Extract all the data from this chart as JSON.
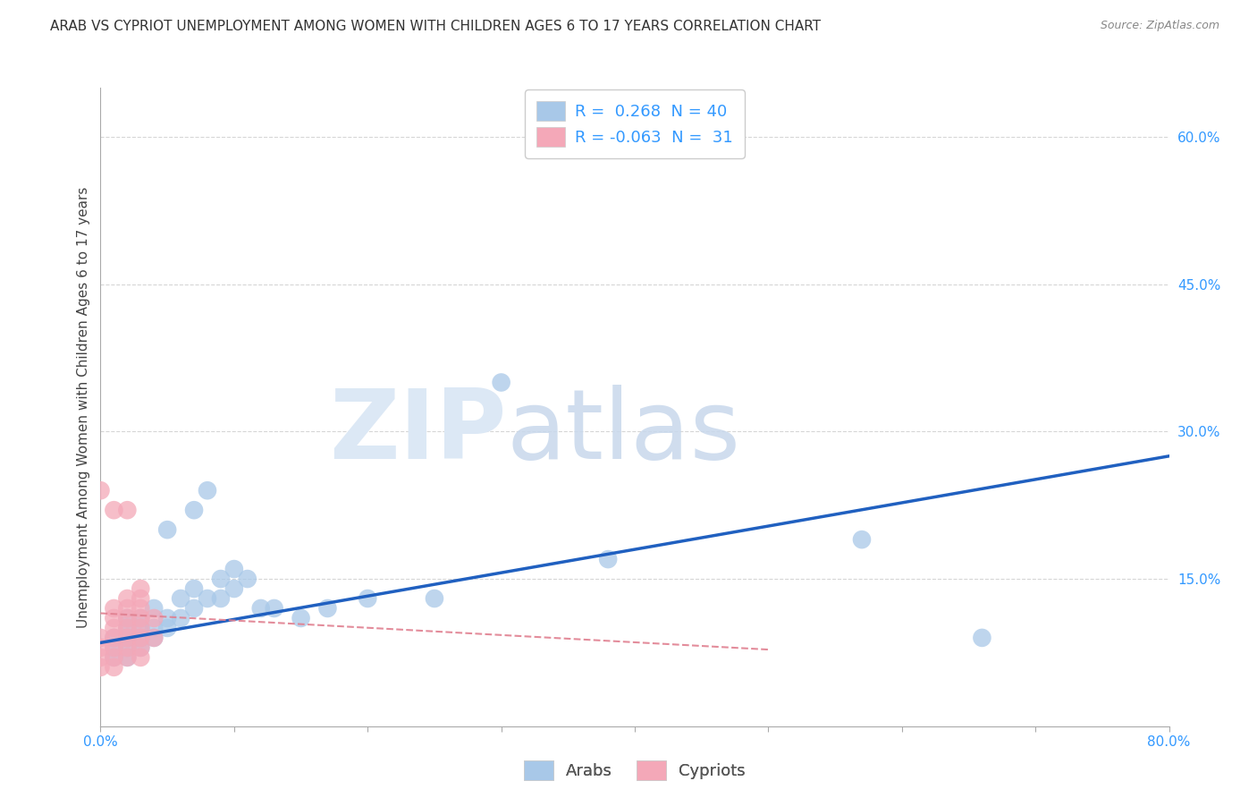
{
  "title": "ARAB VS CYPRIOT UNEMPLOYMENT AMONG WOMEN WITH CHILDREN AGES 6 TO 17 YEARS CORRELATION CHART",
  "source": "Source: ZipAtlas.com",
  "ylabel": "Unemployment Among Women with Children Ages 6 to 17 years",
  "xlim": [
    0.0,
    0.8
  ],
  "ylim": [
    0.0,
    0.65
  ],
  "xticks": [
    0.0,
    0.1,
    0.2,
    0.3,
    0.4,
    0.5,
    0.6,
    0.7,
    0.8
  ],
  "xticklabels": [
    "0.0%",
    "",
    "",
    "",
    "",
    "",
    "",
    "",
    "80.0%"
  ],
  "ytick_right_labels": [
    "60.0%",
    "45.0%",
    "30.0%",
    "15.0%",
    ""
  ],
  "ytick_right_values": [
    0.6,
    0.45,
    0.3,
    0.15,
    0.0
  ],
  "legend_arab_R": "0.268",
  "legend_arab_N": "40",
  "legend_cypriot_R": "-0.063",
  "legend_cypriot_N": "31",
  "arab_color": "#a8c8e8",
  "cypriot_color": "#f4a8b8",
  "arab_line_color": "#2060c0",
  "cypriot_line_color": "#e08090",
  "arab_x": [
    0.01,
    0.01,
    0.01,
    0.02,
    0.02,
    0.02,
    0.02,
    0.02,
    0.03,
    0.03,
    0.03,
    0.03,
    0.04,
    0.04,
    0.04,
    0.05,
    0.05,
    0.05,
    0.06,
    0.06,
    0.07,
    0.07,
    0.07,
    0.08,
    0.08,
    0.09,
    0.09,
    0.1,
    0.1,
    0.11,
    0.12,
    0.13,
    0.15,
    0.17,
    0.2,
    0.25,
    0.3,
    0.38,
    0.57,
    0.66
  ],
  "arab_y": [
    0.07,
    0.08,
    0.09,
    0.07,
    0.08,
    0.09,
    0.1,
    0.11,
    0.08,
    0.09,
    0.1,
    0.11,
    0.09,
    0.1,
    0.12,
    0.1,
    0.11,
    0.2,
    0.11,
    0.13,
    0.12,
    0.14,
    0.22,
    0.13,
    0.24,
    0.13,
    0.15,
    0.14,
    0.16,
    0.15,
    0.12,
    0.12,
    0.11,
    0.12,
    0.13,
    0.13,
    0.35,
    0.17,
    0.19,
    0.09
  ],
  "cypriot_x": [
    0.0,
    0.0,
    0.0,
    0.0,
    0.0,
    0.01,
    0.01,
    0.01,
    0.01,
    0.01,
    0.01,
    0.01,
    0.01,
    0.02,
    0.02,
    0.02,
    0.02,
    0.02,
    0.02,
    0.02,
    0.02,
    0.03,
    0.03,
    0.03,
    0.03,
    0.03,
    0.03,
    0.03,
    0.03,
    0.04,
    0.04
  ],
  "cypriot_y": [
    0.06,
    0.07,
    0.08,
    0.09,
    0.24,
    0.06,
    0.07,
    0.08,
    0.09,
    0.1,
    0.11,
    0.12,
    0.22,
    0.07,
    0.08,
    0.09,
    0.1,
    0.11,
    0.12,
    0.13,
    0.22,
    0.07,
    0.08,
    0.09,
    0.1,
    0.11,
    0.12,
    0.13,
    0.14,
    0.09,
    0.11
  ],
  "arab_line_x0": 0.0,
  "arab_line_y0": 0.085,
  "arab_line_x1": 0.8,
  "arab_line_y1": 0.275,
  "cypriot_line_x0": 0.0,
  "cypriot_line_y0": 0.115,
  "cypriot_line_x1": 0.5,
  "cypriot_line_y1": 0.078,
  "background_color": "#ffffff",
  "grid_color": "#cccccc",
  "title_fontsize": 11,
  "axis_label_fontsize": 11,
  "tick_fontsize": 11,
  "marker_size": 220
}
